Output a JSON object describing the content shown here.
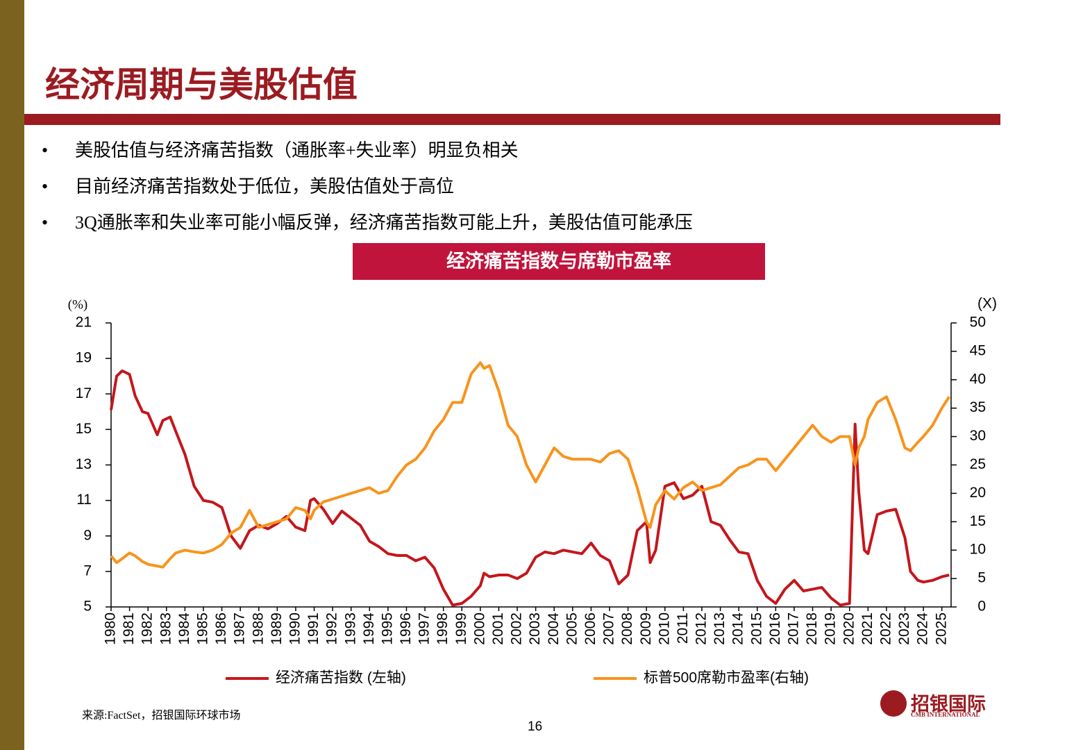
{
  "title": "经济周期与美股估值",
  "bullets": [
    "美股估值与经济痛苦指数（通胀率+失业率）明显负相关",
    "目前经济痛苦指数处于低位，美股估值处于高位",
    "3Q通胀率和失业率可能小幅反弹，经济痛苦指数可能上升，美股估值可能承压"
  ],
  "source": "来源:FactSet，招银国际环球市场",
  "page_number": "16",
  "logo": {
    "name": "招银国际",
    "subtitle": "CMB INTERNATIONAL"
  },
  "chart_data": {
    "type": "line",
    "title": "经济痛苦指数与席勒市盈率",
    "y_label": "(%)",
    "y2_label": "(X)",
    "x": [
      1980.0,
      1980.3,
      1980.6,
      1981.0,
      1981.3,
      1981.7,
      1982.0,
      1982.5,
      1982.8,
      1983.2,
      1983.5,
      1984.0,
      1984.5,
      1985.0,
      1985.5,
      1986.0,
      1986.5,
      1987.0,
      1987.5,
      1988.0,
      1988.5,
      1989.0,
      1989.5,
      1990.0,
      1990.5,
      1990.8,
      1991.0,
      1991.5,
      1992.0,
      1992.5,
      1993.0,
      1993.5,
      1994.0,
      1994.5,
      1995.0,
      1995.5,
      1996.0,
      1996.5,
      1997.0,
      1997.5,
      1998.0,
      1998.5,
      1999.0,
      1999.5,
      2000.0,
      2000.2,
      2000.5,
      2001.0,
      2001.5,
      2002.0,
      2002.5,
      2003.0,
      2003.5,
      2004.0,
      2004.5,
      2005.0,
      2005.5,
      2006.0,
      2006.5,
      2007.0,
      2007.5,
      2008.0,
      2008.5,
      2009.0,
      2009.2,
      2009.5,
      2010.0,
      2010.5,
      2011.0,
      2011.5,
      2012.0,
      2012.5,
      2013.0,
      2013.5,
      2014.0,
      2014.5,
      2015.0,
      2015.5,
      2016.0,
      2016.5,
      2017.0,
      2017.5,
      2018.0,
      2018.5,
      2019.0,
      2019.5,
      2020.0,
      2020.3,
      2020.5,
      2020.8,
      2021.0,
      2021.5,
      2022.0,
      2022.5,
      2023.0,
      2023.3,
      2023.7,
      2024.0,
      2024.5,
      2025.0,
      2025.4
    ],
    "series": [
      {
        "name": "经济痛苦指数 (左轴)",
        "color": "#c4161c",
        "axis": "y",
        "values": [
          16.1,
          18.0,
          18.3,
          18.1,
          16.9,
          16.0,
          15.9,
          14.7,
          15.5,
          15.7,
          14.9,
          13.6,
          11.8,
          11.0,
          10.9,
          10.6,
          9.0,
          8.3,
          9.3,
          9.6,
          9.4,
          9.7,
          10.1,
          9.5,
          9.3,
          11.0,
          11.1,
          10.5,
          9.7,
          10.4,
          10.0,
          9.6,
          8.7,
          8.4,
          8.0,
          7.9,
          7.9,
          7.6,
          7.8,
          7.2,
          6.0,
          5.1,
          5.2,
          5.6,
          6.2,
          6.9,
          6.7,
          6.8,
          6.8,
          6.6,
          6.9,
          7.8,
          8.1,
          8.0,
          8.2,
          8.1,
          8.0,
          8.6,
          7.9,
          7.6,
          6.3,
          6.8,
          9.3,
          9.8,
          7.5,
          8.2,
          11.8,
          12.0,
          11.1,
          11.3,
          11.8,
          9.8,
          9.6,
          8.8,
          8.1,
          8.0,
          6.5,
          5.6,
          5.2,
          6.0,
          6.5,
          5.9,
          6.0,
          6.1,
          5.5,
          5.1,
          5.2,
          15.3,
          11.5,
          8.2,
          8.0,
          10.2,
          10.4,
          10.5,
          8.9,
          7.0,
          6.5,
          6.4,
          6.5,
          6.7,
          6.8
        ]
      },
      {
        "name": "标普500席勒市盈率(右轴)",
        "color": "#f7941d",
        "axis": "y2",
        "values": [
          9,
          7.8,
          8.5,
          9.5,
          9,
          8,
          7.5,
          7.2,
          7,
          8.5,
          9.5,
          10,
          9.7,
          9.5,
          10,
          11,
          13,
          14,
          17,
          14,
          14.5,
          15,
          15.5,
          17.5,
          17,
          15.5,
          17,
          18.5,
          19,
          19.5,
          20,
          20.5,
          21,
          20,
          20.5,
          23,
          25,
          26,
          28,
          31,
          33,
          36,
          36,
          41,
          43,
          42,
          42.5,
          38,
          32,
          30,
          25,
          22,
          25,
          28,
          26.5,
          26,
          26,
          26,
          25.5,
          27,
          27.5,
          26,
          21,
          15,
          14,
          18,
          20.5,
          19,
          21,
          22,
          20.5,
          21,
          21.5,
          23,
          24.5,
          25,
          26,
          26,
          24,
          26,
          28,
          30,
          32,
          30,
          29,
          30,
          30,
          25,
          28,
          30,
          33,
          36,
          37,
          33,
          28,
          27.5,
          29,
          30,
          32,
          35,
          37
        ]
      }
    ],
    "xlim": [
      1980,
      2025.5
    ],
    "xticks": [
      1980,
      1981,
      1982,
      1983,
      1984,
      1985,
      1986,
      1987,
      1988,
      1989,
      1990,
      1991,
      1992,
      1993,
      1994,
      1995,
      1996,
      1997,
      1998,
      1999,
      2000,
      2001,
      2002,
      2003,
      2004,
      2005,
      2006,
      2007,
      2008,
      2009,
      2010,
      2011,
      2012,
      2013,
      2014,
      2015,
      2016,
      2017,
      2018,
      2019,
      2020,
      2021,
      2022,
      2023,
      2024,
      2025
    ],
    "ylim": [
      5,
      21
    ],
    "yticks": [
      5,
      7,
      9,
      11,
      13,
      15,
      17,
      19,
      21
    ],
    "y2lim": [
      0,
      50
    ],
    "y2ticks": [
      0,
      5,
      10,
      15,
      20,
      25,
      30,
      35,
      40,
      45,
      50
    ],
    "legend": "bottom"
  }
}
